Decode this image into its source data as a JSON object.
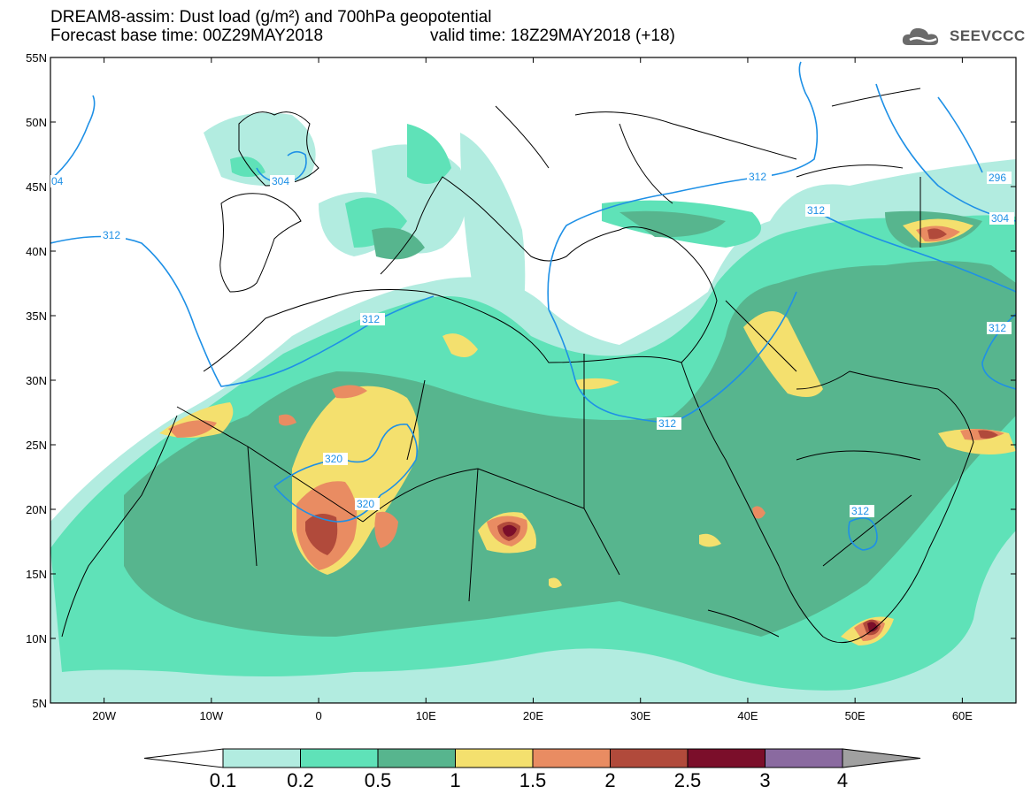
{
  "header": {
    "title_line1": "DREAM8-assim: Dust load (g/m²) and 700hPa geopotential",
    "title_line2": "Forecast base time: 00Z29MAY2018",
    "valid_time": "valid time: 18Z29MAY2018 (+18)"
  },
  "logo": {
    "icon": "cloud-logo-icon",
    "text": "SEEVCCC"
  },
  "map": {
    "extent": {
      "lon": [
        -25,
        65
      ],
      "lat": [
        5,
        55
      ]
    },
    "lat_ticks": [
      "55N",
      "50N",
      "45N",
      "40N",
      "35N",
      "30N",
      "25N",
      "20N",
      "15N",
      "10N",
      "5N"
    ],
    "lon_ticks": [
      "20W",
      "10W",
      "0",
      "10E",
      "20E",
      "30E",
      "40E",
      "50E",
      "60E"
    ],
    "contour_labels": [
      "304",
      "312",
      "312",
      "320",
      "320",
      "312",
      "312",
      "312",
      "296",
      "304",
      "312",
      "312",
      "04"
    ]
  },
  "colorbar": {
    "labels": [
      "0.1",
      "0.2",
      "0.5",
      "1",
      "1.5",
      "2",
      "2.5",
      "3",
      "4"
    ],
    "colors": [
      "#ffffff",
      "#b2ece0",
      "#5fe2b8",
      "#57b58e",
      "#f4e06e",
      "#e98c62",
      "#b14a3b",
      "#7b0e2a",
      "#8a6aa0",
      "#a0a0a0"
    ]
  },
  "colors": {
    "land_line": "#000000",
    "contour_line": "#1e90e6",
    "sea": "#ffffff"
  }
}
